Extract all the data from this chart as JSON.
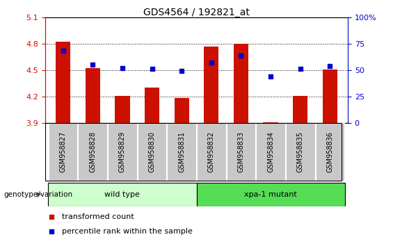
{
  "title": "GDS4564 / 192821_at",
  "samples": [
    "GSM958827",
    "GSM958828",
    "GSM958829",
    "GSM958830",
    "GSM958831",
    "GSM958832",
    "GSM958833",
    "GSM958834",
    "GSM958835",
    "GSM958836"
  ],
  "transformed_count": [
    4.82,
    4.52,
    4.21,
    4.3,
    4.18,
    4.77,
    4.8,
    3.91,
    4.21,
    4.51
  ],
  "percentile_rank_pct": [
    68,
    55,
    52,
    51,
    49,
    57,
    64,
    44,
    51,
    54
  ],
  "ylim_left": [
    3.9,
    5.1
  ],
  "ylim_right": [
    0,
    100
  ],
  "yticks_left": [
    3.9,
    4.2,
    4.5,
    4.8,
    5.1
  ],
  "yticks_right": [
    0,
    25,
    50,
    75,
    100
  ],
  "bar_color": "#cc1100",
  "dot_color": "#0000cc",
  "background_color": "#ffffff",
  "tick_bg_color": "#c8c8c8",
  "wild_type_color": "#ccffcc",
  "mutant_color": "#55dd55",
  "wild_type_label": "wild type",
  "mutant_label": "xpa-1 mutant",
  "genotype_label": "genotype/variation",
  "legend_bar_label": "transformed count",
  "legend_dot_label": "percentile rank within the sample",
  "title_fontsize": 10,
  "tick_fontsize": 8,
  "label_fontsize": 8,
  "gridline_vals": [
    4.2,
    4.5,
    4.8
  ],
  "bar_width": 0.5
}
